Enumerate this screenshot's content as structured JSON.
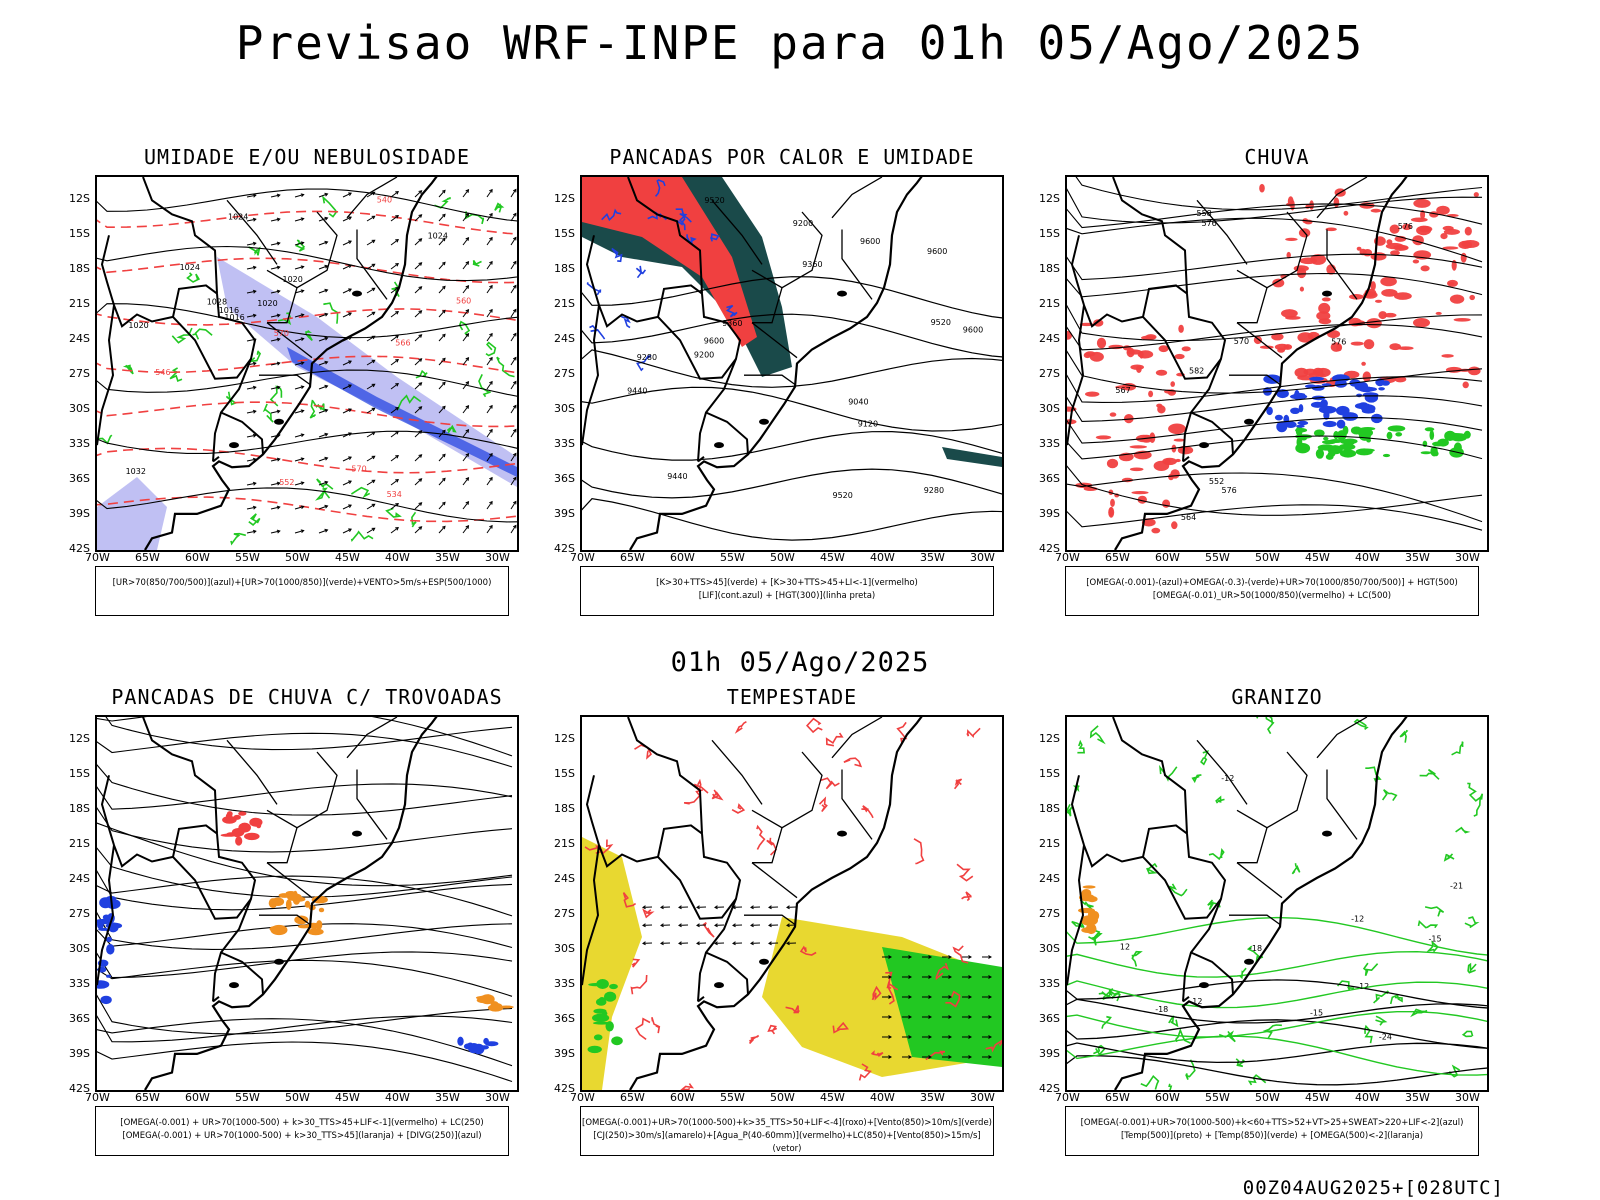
{
  "title": "Previsao WRF-INPE  para 01h 05/Ago/2025",
  "mid_title": "01h 05/Ago/2025",
  "footer": "00Z04AUG2025+[028UTC]",
  "axes": {
    "lat_labels": [
      "12S",
      "15S",
      "18S",
      "21S",
      "24S",
      "27S",
      "30S",
      "33S",
      "36S",
      "39S",
      "42S"
    ],
    "lon_labels": [
      "70W",
      "65W",
      "60W",
      "55W",
      "50W",
      "45W",
      "40W",
      "35W",
      "30W"
    ]
  },
  "colors": {
    "red": "#f04040",
    "green": "#22c822",
    "blue": "#2040e0",
    "lavender": "#b0b0f0",
    "orange": "#f09020",
    "yellow": "#e8d830",
    "darkteal": "#1a4a4a"
  },
  "panels": [
    {
      "title": "UMIDADE E/OU NEBULOSIDADE",
      "legend": [
        "[UR>70(850/700/500)](azul)+[UR>70(1000/850)](verde)+VENTO>5m/s+ESP(500/1000)"
      ],
      "labels": [
        "1016",
        "1016",
        "1020",
        "1020",
        "1020",
        "1024",
        "1024",
        "1024",
        "1032",
        "1028",
        "570",
        "570",
        "566",
        "560",
        "552",
        "546",
        "540",
        "534"
      ]
    },
    {
      "title": "PANCADAS POR CALOR E UMIDADE",
      "legend": [
        "[K>30+TTS>45](verde) + [K>30+TTS>45+LI<-1](vermelho)",
        "[LIF](cont.azul) + [HGT(300)](linha preta)"
      ],
      "labels": [
        "9600",
        "9600",
        "9600",
        "9600",
        "9520",
        "9520",
        "9520",
        "9440",
        "9440",
        "9360",
        "9360",
        "9280",
        "9280",
        "9200",
        "9200",
        "9120",
        "9040"
      ]
    },
    {
      "title": "CHUVA",
      "legend": [
        "[OMEGA(-0.001)-(azul)+OMEGA(-0.3)-(verde)+UR>70(1000/850/700/500)] + HGT(500)",
        "[OMEGA(-0.01)_UR>50(1000/850)(vermelho) + LC(500)"
      ],
      "labels": [
        "582",
        "576",
        "576",
        "576",
        "570",
        "567",
        "564",
        "558",
        "552",
        "576"
      ]
    },
    {
      "title": "PANCADAS DE CHUVA C/ TROVOADAS",
      "legend": [
        "[OMEGA(-0.001) + UR>70(1000-500) + k>30_TTS>45+LIF<-1](vermelho) + LC(250)",
        "[OMEGA(-0.001) + UR>70(1000-500) + k>30_TTS>45](laranja) + [DIVG(250)](azul)"
      ],
      "labels": []
    },
    {
      "title": "TEMPESTADE",
      "legend": [
        "[OMEGA(-0.001)+UR>70(1000-500)+k>35_TTS>50+LIF<-4](roxo)+[Vento(850)>10m/s](verde)",
        "[CJ(250)>30m/s](amarelo)+[Agua_P(40-60mm)](vermelho)+LC(850)+[Vento(850)>15m/s](vetor)"
      ],
      "labels": []
    },
    {
      "title": "GRANIZO",
      "legend": [
        "[OMEGA(-0.001)+UR>70(1000-500)+k<60+TTS>52+VT>25+SWEAT>220+LIF<-2](azul)",
        "[Temp(500)](preto) + [Temp(850)](verde) + [OMEGA(500)<-2](laranja)"
      ],
      "labels": [
        "-12",
        "-12",
        "-12",
        "-15",
        "-15",
        "-18",
        "-18",
        "-21",
        "-24",
        "12",
        "12"
      ]
    }
  ]
}
